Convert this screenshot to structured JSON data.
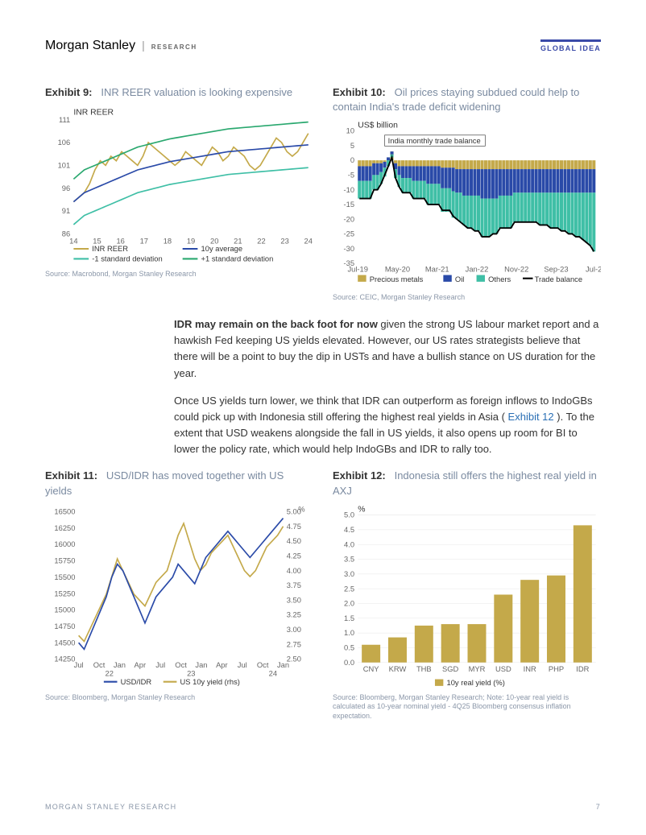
{
  "header": {
    "brand": "Morgan Stanley",
    "research": "RESEARCH",
    "tag": "GLOBAL IDEA"
  },
  "exhibit9": {
    "label": "Exhibit 9:",
    "title": "INR REER valuation is looking expensive",
    "ylabel": "INR REER",
    "type": "line",
    "xticks": [
      "14",
      "15",
      "16",
      "17",
      "18",
      "19",
      "20",
      "21",
      "22",
      "23",
      "24"
    ],
    "ylim": [
      86,
      111
    ],
    "ytick_step": 5,
    "series": {
      "reer": {
        "label": "INR REER",
        "color": "#c4a94a",
        "width": 1.6,
        "data": [
          93,
          94,
          95,
          97,
          100,
          102,
          101,
          103,
          102,
          104,
          103,
          102,
          101,
          103,
          106,
          105,
          104,
          103,
          102,
          101,
          102,
          104,
          103,
          102,
          101,
          103,
          105,
          104,
          102,
          103,
          105,
          104,
          103,
          101,
          100,
          101,
          103,
          105,
          107,
          106,
          104,
          103,
          104,
          106,
          108
        ]
      },
      "avg": {
        "label": "10y average",
        "color": "#2a4aa8",
        "width": 1.6,
        "data": [
          93,
          94,
          95,
          95.5,
          96,
          96.5,
          97,
          97.5,
          98,
          98.5,
          99,
          99.5,
          100,
          100.3,
          100.6,
          100.9,
          101.2,
          101.5,
          101.8,
          102,
          102.2,
          102.4,
          102.6,
          102.8,
          103,
          103.2,
          103.4,
          103.6,
          103.8,
          104,
          104.1,
          104.2,
          104.3,
          104.4,
          104.5,
          104.6,
          104.7,
          104.8,
          104.9,
          105,
          105.1,
          105.2,
          105.3,
          105.4,
          105.5
        ]
      },
      "sdlo": {
        "label": "-1 standard deviation",
        "color": "#3fbfa6",
        "width": 1.6,
        "data": [
          88,
          89,
          90,
          90.5,
          91,
          91.5,
          92,
          92.5,
          93,
          93.5,
          94,
          94.5,
          95,
          95.3,
          95.6,
          95.9,
          96.2,
          96.5,
          96.8,
          97,
          97.2,
          97.4,
          97.6,
          97.8,
          98,
          98.2,
          98.4,
          98.6,
          98.8,
          99,
          99.1,
          99.2,
          99.3,
          99.4,
          99.5,
          99.6,
          99.7,
          99.8,
          99.9,
          100,
          100.1,
          100.2,
          100.3,
          100.4,
          100.5
        ]
      },
      "sdhi": {
        "label": "+1 standard deviation",
        "color": "#2aa86f",
        "width": 1.6,
        "data": [
          98,
          99,
          100,
          100.5,
          101,
          101.5,
          102,
          102.5,
          103,
          103.5,
          104,
          104.5,
          105,
          105.3,
          105.6,
          105.9,
          106.2,
          106.5,
          106.8,
          107,
          107.2,
          107.4,
          107.6,
          107.8,
          108,
          108.2,
          108.4,
          108.6,
          108.8,
          109,
          109.1,
          109.2,
          109.3,
          109.4,
          109.5,
          109.6,
          109.7,
          109.8,
          109.9,
          110,
          110.1,
          110.2,
          110.3,
          110.4,
          110.5
        ]
      }
    },
    "source": "Source: Macrobond, Morgan Stanley Research"
  },
  "exhibit10": {
    "label": "Exhibit 10:",
    "title": "Oil prices staying subdued could help to contain India's trade deficit widening",
    "ylabel": "US$ billion",
    "annot": "India monthly trade balance",
    "type": "stacked-bar+line",
    "xticks": [
      "Jul-19",
      "May-20",
      "Mar-21",
      "Jan-22",
      "Nov-22",
      "Sep-23",
      "Jul-24"
    ],
    "ylim": [
      -35,
      10
    ],
    "ytick_step": 5,
    "colors": {
      "precious": "#c4a94a",
      "oil": "#2a4aa8",
      "others": "#3fbfa6",
      "trade": "#000000"
    },
    "legend": {
      "precious": "Precious metals",
      "oil": "Oil",
      "others": "Others",
      "trade": "Trade balance"
    },
    "n": 66,
    "precious": [
      -2,
      -2,
      -2,
      -2,
      -1,
      -1,
      -1,
      -0.5,
      1,
      3,
      -1,
      -2,
      -2,
      -2,
      -2,
      -2,
      -2,
      -2,
      -2,
      -2,
      -2,
      -2,
      -2,
      -2.5,
      -2.5,
      -2.5,
      -2.5,
      -3,
      -3,
      -3,
      -3,
      -3,
      -3,
      -3,
      -3,
      -3,
      -3,
      -3,
      -3,
      -3,
      -3,
      -3,
      -3,
      -3,
      -3,
      -3,
      -3,
      -3,
      -3,
      -3,
      -3,
      -3,
      -3,
      -3,
      -3,
      -3,
      -3,
      -3,
      -3,
      -3,
      -3,
      -3,
      -3,
      -3,
      -3,
      -3
    ],
    "oil": [
      -5,
      -5,
      -5,
      -5,
      -4,
      -4,
      -3,
      -2,
      -1,
      -1,
      -2,
      -3,
      -4,
      -4,
      -4,
      -5,
      -5,
      -5,
      -5,
      -6,
      -6,
      -6,
      -6,
      -7,
      -7,
      -7,
      -8,
      -8,
      -8,
      -9,
      -9,
      -9,
      -9,
      -9,
      -10,
      -10,
      -10,
      -10,
      -10,
      -9,
      -9,
      -9,
      -9,
      -8,
      -8,
      -8,
      -8,
      -8,
      -8,
      -8,
      -8,
      -8,
      -8,
      -8,
      -8,
      -8,
      -8,
      -8,
      -8,
      -8,
      -8,
      -8,
      -8,
      -8,
      -8,
      -8
    ],
    "others": [
      -6,
      -6,
      -6,
      -6,
      -5,
      -5,
      -4,
      -3,
      -2,
      -1,
      -3,
      -4,
      -5,
      -5,
      -5,
      -6,
      -6,
      -6,
      -6,
      -7,
      -7,
      -7,
      -7,
      -8,
      -8,
      -8,
      -9,
      -9,
      -10,
      -10,
      -11,
      -11,
      -12,
      -12,
      -13,
      -13,
      -13,
      -12,
      -12,
      -11,
      -11,
      -11,
      -11,
      -10,
      -10,
      -10,
      -10,
      -10,
      -10,
      -10,
      -11,
      -11,
      -11,
      -12,
      -12,
      -12,
      -13,
      -13,
      -14,
      -14,
      -15,
      -15,
      -16,
      -17,
      -18,
      -20
    ],
    "trade": [
      -13,
      -13,
      -13,
      -13,
      -10,
      -10,
      -8,
      -5,
      -2,
      1,
      -6,
      -9,
      -11,
      -11,
      -11,
      -13,
      -13,
      -13,
      -13,
      -15,
      -15,
      -15,
      -15,
      -17,
      -17,
      -17,
      -19,
      -20,
      -21,
      -22,
      -23,
      -23,
      -24,
      -24,
      -26,
      -26,
      -26,
      -25,
      -25,
      -23,
      -23,
      -23,
      -23,
      -21,
      -21,
      -21,
      -21,
      -21,
      -21,
      -21,
      -22,
      -22,
      -22,
      -23,
      -23,
      -23,
      -24,
      -24,
      -25,
      -25,
      -26,
      -26,
      -27,
      -28,
      -29,
      -31
    ],
    "source": "Source: CEIC, Morgan Stanley Research"
  },
  "para1": {
    "bold": "IDR may remain on the back foot for now",
    "rest": " given the strong US labour market report and a hawkish Fed keeping US yields elevated. However, our US rates strategists believe that there will be a point to buy the dip in USTs and have a bullish stance on US duration for the year."
  },
  "para2": {
    "pre": "Once US yields turn lower, we think that IDR can outperform as foreign inflows to IndoGBs could pick up with Indonesia still offering the highest real yields in Asia ( ",
    "link": "Exhibit 12",
    "post": " ). To the extent that USD weakens alongside the fall in US yields, it also opens up room for BI to lower the policy rate, which would help IndoGBs and IDR to rally too."
  },
  "exhibit11": {
    "label": "Exhibit 11:",
    "title": "USD/IDR has moved together with US yields",
    "type": "line-dual-axis",
    "y1lim": [
      14250,
      16500
    ],
    "y1tick_step": 250,
    "y2lim": [
      2.5,
      5.0
    ],
    "y2tick_step": 0.25,
    "y2label": "%",
    "xticks": [
      "Jul",
      "Oct",
      "Jan",
      "Apr",
      "Jul",
      "Oct",
      "Jan",
      "Apr",
      "Jul",
      "Oct",
      "Jan"
    ],
    "xyears": [
      "22",
      "23",
      "24"
    ],
    "series": {
      "usdidr": {
        "label": "USD/IDR",
        "color": "#2a4aa8",
        "width": 1.6,
        "data": [
          14500,
          14400,
          14600,
          14800,
          15000,
          15200,
          15500,
          15700,
          15600,
          15400,
          15200,
          15000,
          14800,
          15000,
          15200,
          15300,
          15400,
          15500,
          15700,
          15600,
          15500,
          15400,
          15600,
          15800,
          15900,
          16000,
          16100,
          16200,
          16100,
          16000,
          15900,
          15800,
          15900,
          16000,
          16100,
          16200,
          16300,
          16400
        ]
      },
      "us10y": {
        "label": "US 10y yield (rhs)",
        "color": "#c4a94a",
        "width": 1.6,
        "data": [
          2.9,
          2.8,
          3.0,
          3.2,
          3.4,
          3.6,
          3.9,
          4.2,
          4.0,
          3.8,
          3.6,
          3.5,
          3.4,
          3.6,
          3.8,
          3.9,
          4.0,
          4.3,
          4.6,
          4.8,
          4.5,
          4.2,
          4.0,
          4.1,
          4.3,
          4.4,
          4.5,
          4.6,
          4.4,
          4.2,
          4.0,
          3.9,
          4.0,
          4.2,
          4.4,
          4.5,
          4.6,
          4.75
        ]
      }
    },
    "source": "Source: Bloomberg, Morgan Stanley Research"
  },
  "exhibit12": {
    "label": "Exhibit 12:",
    "title": "Indonesia still offers the highest real yield in AXJ",
    "type": "bar",
    "ylabel": "%",
    "ylim": [
      0,
      5.0
    ],
    "ytick_step": 0.5,
    "categories": [
      "CNY",
      "KRW",
      "THB",
      "SGD",
      "MYR",
      "USD",
      "INR",
      "PHP",
      "IDR"
    ],
    "values": [
      0.6,
      0.85,
      1.25,
      1.3,
      1.3,
      2.3,
      2.8,
      2.95,
      4.65
    ],
    "bar_color": "#c4a94a",
    "legend": "10y real yield (%)",
    "source": "Source: Bloomberg, Morgan Stanley Research; Note: 10-year real yield is calculated as 10-year nominal yield - 4Q25 Bloomberg consensus inflation expectation."
  },
  "footer": {
    "left": "MORGAN STANLEY RESEARCH",
    "page": "7"
  }
}
